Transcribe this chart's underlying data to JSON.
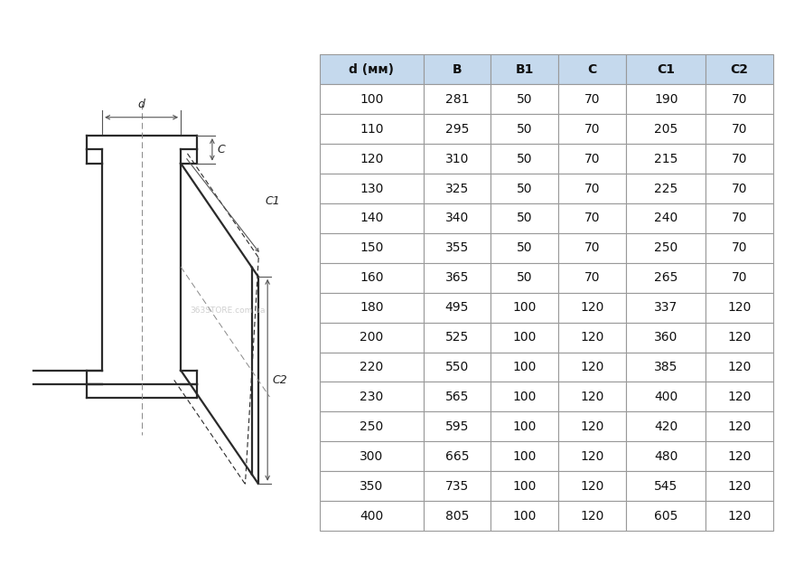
{
  "headers": [
    "d (мм)",
    "B",
    "B1",
    "C",
    "C1",
    "C2"
  ],
  "rows": [
    [
      "100",
      "281",
      "50",
      "70",
      "190",
      "70"
    ],
    [
      "110",
      "295",
      "50",
      "70",
      "205",
      "70"
    ],
    [
      "120",
      "310",
      "50",
      "70",
      "215",
      "70"
    ],
    [
      "130",
      "325",
      "50",
      "70",
      "225",
      "70"
    ],
    [
      "140",
      "340",
      "50",
      "70",
      "240",
      "70"
    ],
    [
      "150",
      "355",
      "50",
      "70",
      "250",
      "70"
    ],
    [
      "160",
      "365",
      "50",
      "70",
      "265",
      "70"
    ],
    [
      "180",
      "495",
      "100",
      "120",
      "337",
      "120"
    ],
    [
      "200",
      "525",
      "100",
      "120",
      "360",
      "120"
    ],
    [
      "220",
      "550",
      "100",
      "120",
      "385",
      "120"
    ],
    [
      "230",
      "565",
      "100",
      "120",
      "400",
      "120"
    ],
    [
      "250",
      "595",
      "100",
      "120",
      "420",
      "120"
    ],
    [
      "300",
      "665",
      "100",
      "120",
      "480",
      "120"
    ],
    [
      "350",
      "735",
      "100",
      "120",
      "545",
      "120"
    ],
    [
      "400",
      "805",
      "100",
      "120",
      "605",
      "120"
    ]
  ],
  "header_bg": "#c5d9ed",
  "border_color": "#999999",
  "header_font_size": 10,
  "row_font_size": 10,
  "bg_color": "#ffffff",
  "diagram_line_color": "#2a2a2a",
  "dim_line_color": "#555555",
  "label_color": "#222222"
}
